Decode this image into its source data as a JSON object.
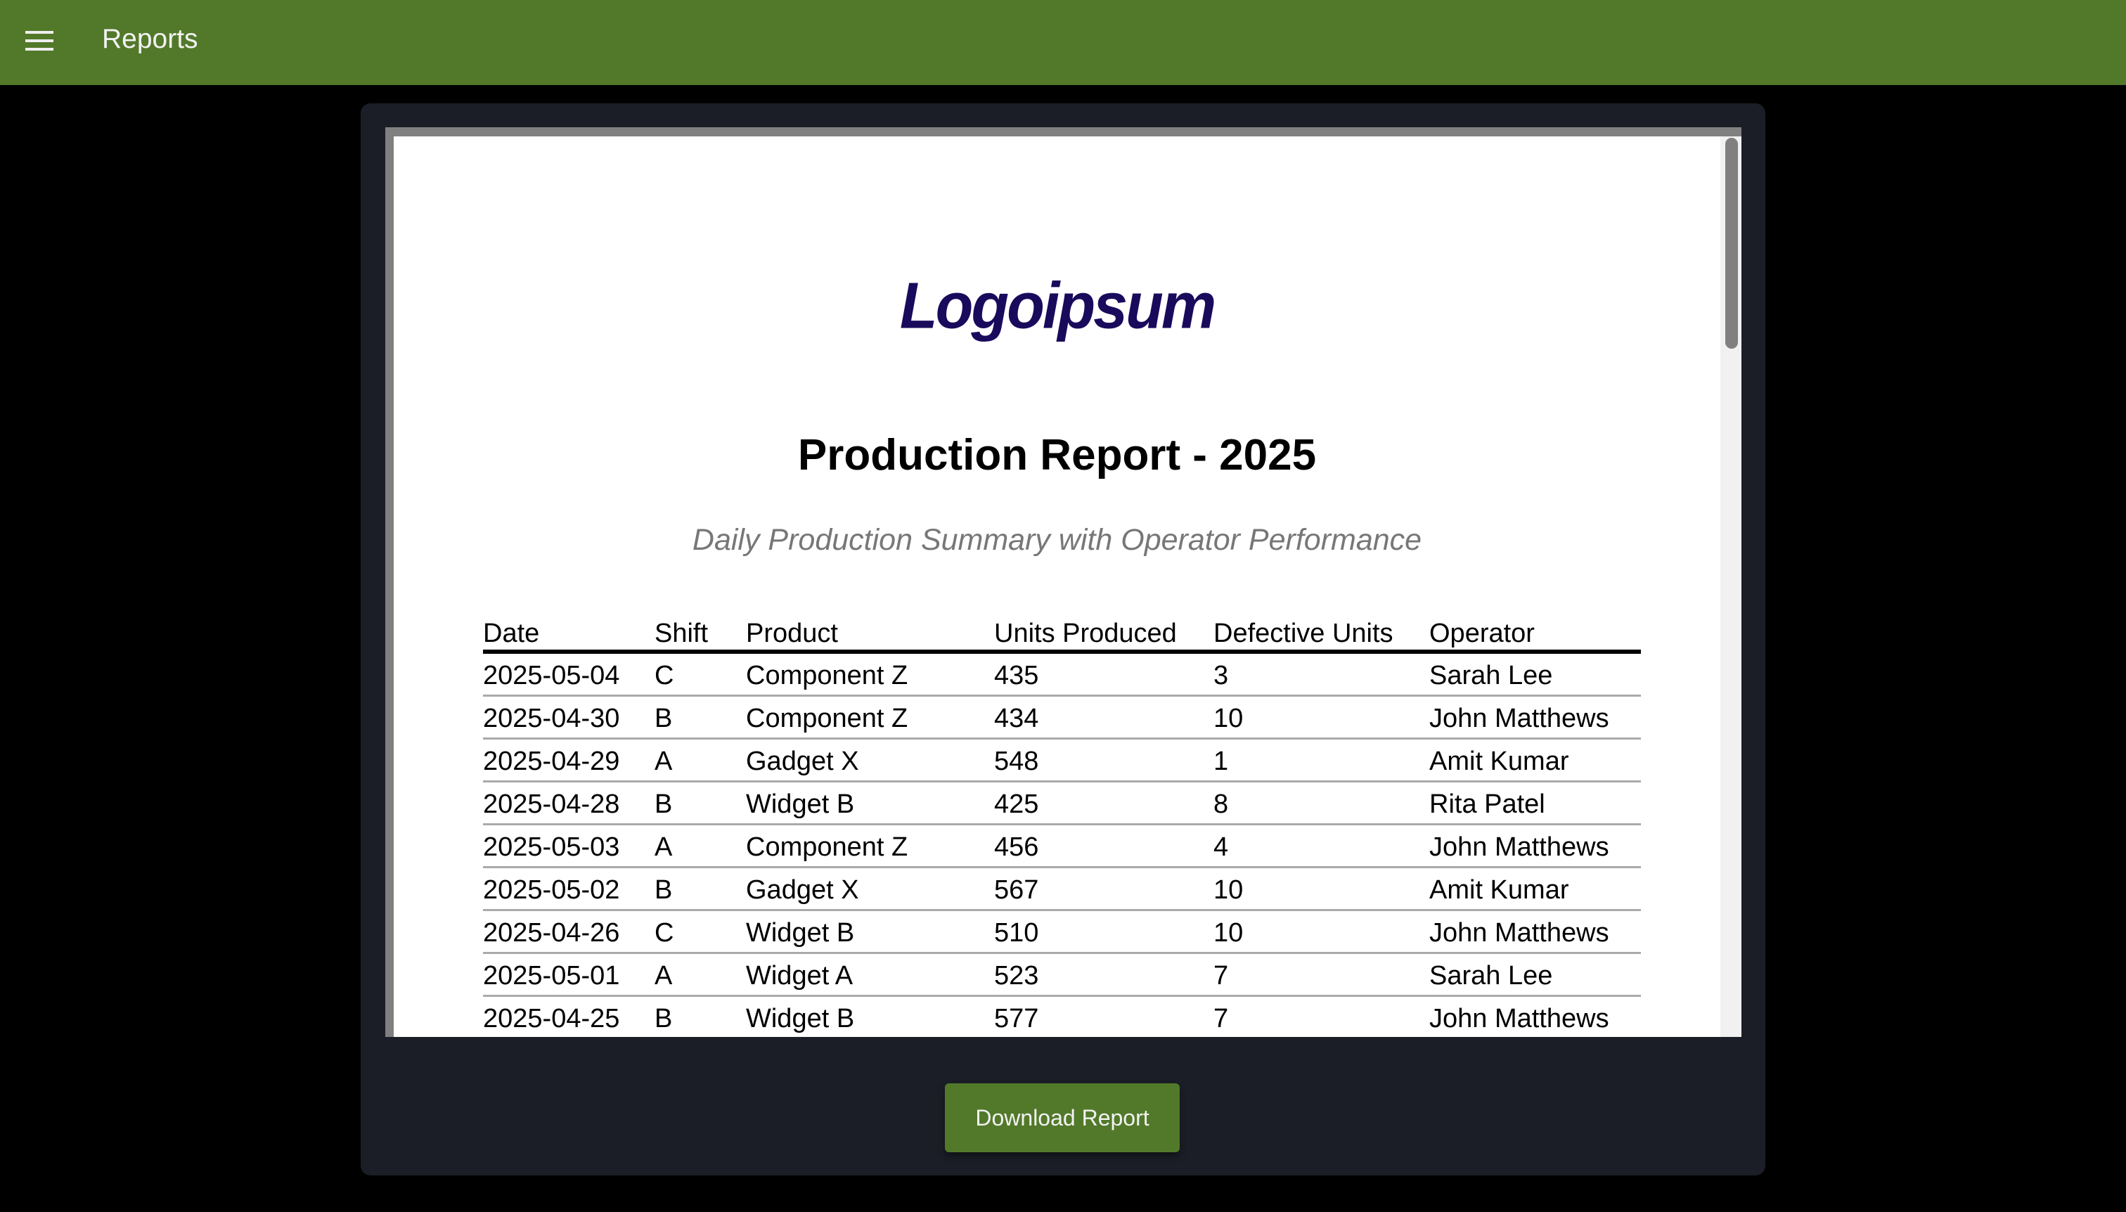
{
  "header": {
    "title": "Reports",
    "menu_icon": "hamburger-menu-icon",
    "color": "#52792a"
  },
  "report": {
    "logo": "Logoipsum",
    "title": "Production Report - 2025",
    "subtitle": "Daily Production Summary with Operator Performance",
    "columns": [
      "Date",
      "Shift",
      "Product",
      "Units Produced",
      "Defective Units",
      "Operator"
    ],
    "rows": [
      [
        "2025-05-04",
        "C",
        "Component Z",
        "435",
        "3",
        "Sarah Lee"
      ],
      [
        "2025-04-30",
        "B",
        "Component Z",
        "434",
        "10",
        "John Matthews"
      ],
      [
        "2025-04-29",
        "A",
        "Gadget X",
        "548",
        "1",
        "Amit Kumar"
      ],
      [
        "2025-04-28",
        "B",
        "Widget B",
        "425",
        "8",
        "Rita Patel"
      ],
      [
        "2025-05-03",
        "A",
        "Component Z",
        "456",
        "4",
        "John Matthews"
      ],
      [
        "2025-05-02",
        "B",
        "Gadget X",
        "567",
        "10",
        "Amit Kumar"
      ],
      [
        "2025-04-26",
        "C",
        "Widget B",
        "510",
        "10",
        "John Matthews"
      ],
      [
        "2025-05-01",
        "A",
        "Widget A",
        "523",
        "7",
        "Sarah Lee"
      ],
      [
        "2025-04-25",
        "B",
        "Widget B",
        "577",
        "7",
        "John Matthews"
      ]
    ]
  },
  "actions": {
    "download_label": "Download Report"
  }
}
